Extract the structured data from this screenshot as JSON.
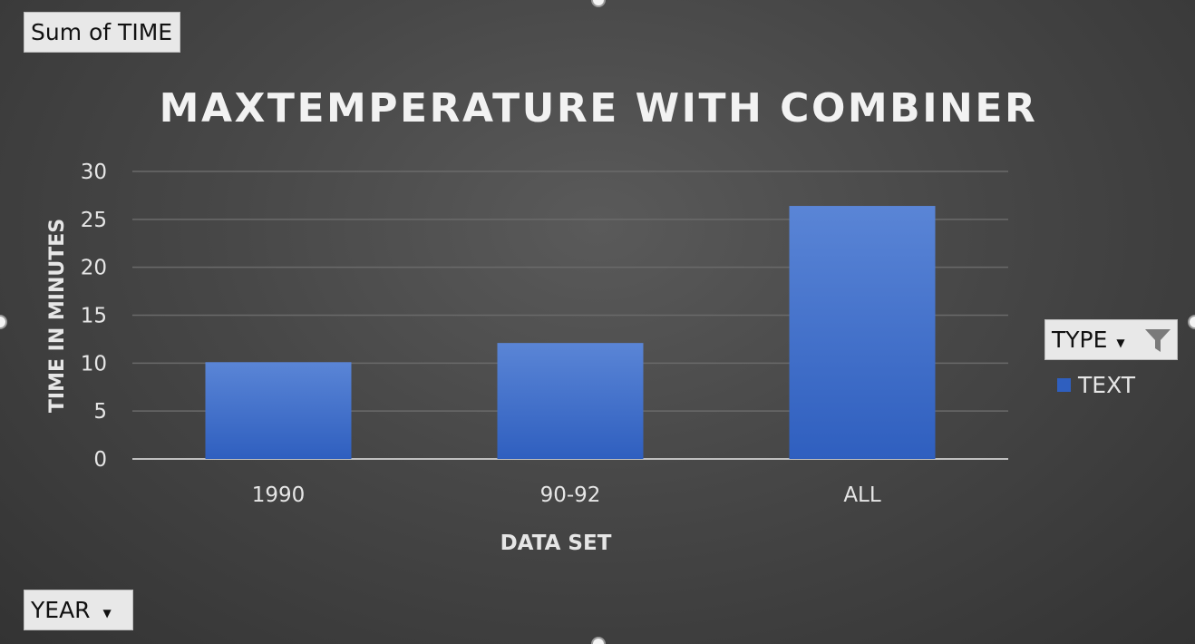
{
  "pivot": {
    "value_field": "Sum of TIME",
    "axis_field": "YEAR",
    "legend_field": "TYPE"
  },
  "colors": {
    "bar_top": "#5a85d6",
    "bar_bottom": "#2f5fbf",
    "gridline": "#6a6a6a",
    "axis_line": "#bfbfbf",
    "text": "#e6e6e6"
  },
  "icons": {
    "dropdown": "chevron-down-icon",
    "filter": "funnel-icon"
  },
  "chart_data": {
    "type": "bar",
    "title": "MAXTEMPERATURE WITH COMBINER",
    "xlabel": "DATA SET",
    "ylabel": "TIME IN MINUTES",
    "categories": [
      "1990",
      "90-92",
      "ALL"
    ],
    "series": [
      {
        "name": "TEXT",
        "values": [
          10.1,
          12.1,
          26.4
        ]
      }
    ],
    "ylim": [
      0,
      30
    ],
    "yticks": [
      0,
      5,
      10,
      15,
      20,
      25,
      30
    ],
    "grid": true,
    "legend_position": "right"
  }
}
